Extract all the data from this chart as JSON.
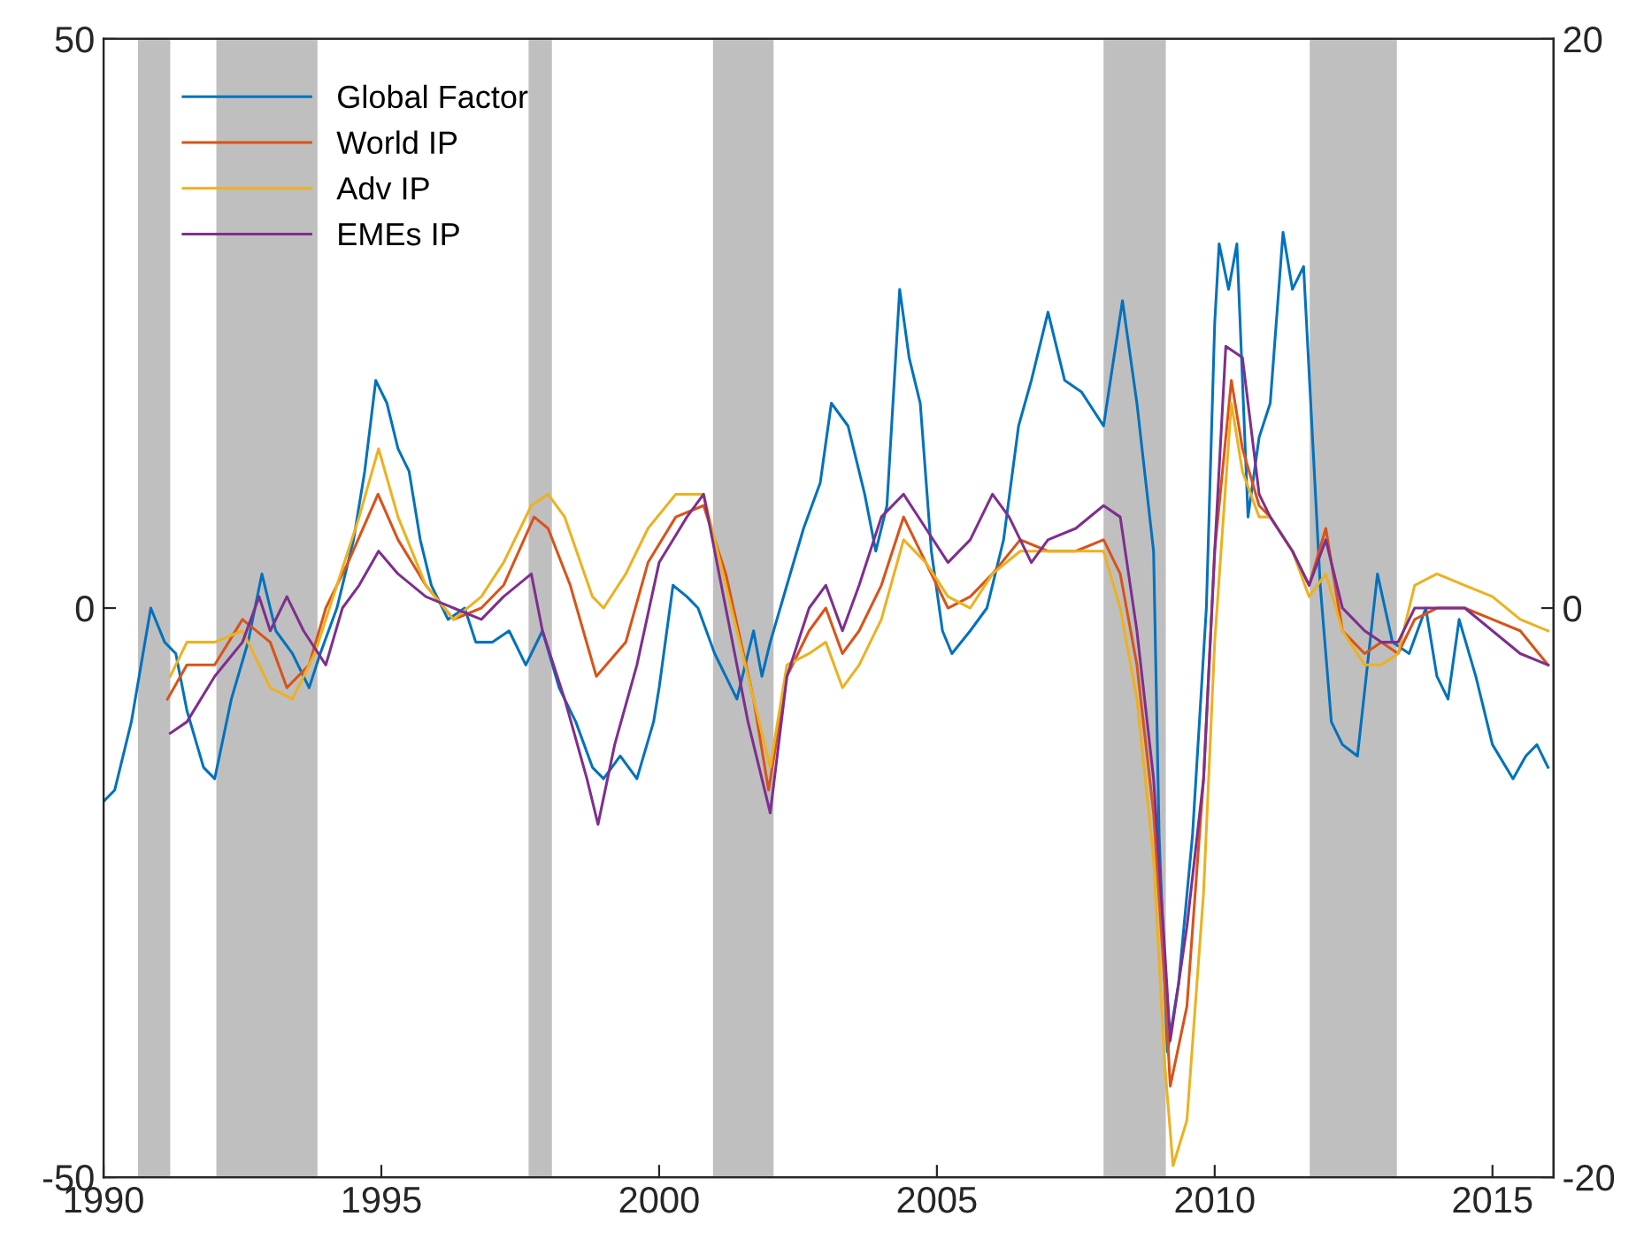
{
  "chart_data": {
    "type": "line",
    "xlim": [
      1990,
      2016.1
    ],
    "xticks": [
      1990,
      1995,
      2000,
      2005,
      2010,
      2015
    ],
    "ylim": [
      -50,
      50
    ],
    "yticks": [
      -50,
      0,
      50
    ],
    "y2lim": [
      -20,
      20
    ],
    "y2ticks": [
      -20,
      0,
      20
    ],
    "grid": false,
    "legend": "top left",
    "bands": [
      {
        "axis": "x",
        "from": 1990.62,
        "to": 1991.2,
        "color": "#bfbfbf"
      },
      {
        "axis": "x",
        "from": 1992.03,
        "to": 1993.85,
        "color": "#bfbfbf"
      },
      {
        "axis": "x",
        "from": 1997.65,
        "to": 1998.07,
        "color": "#bfbfbf"
      },
      {
        "axis": "x",
        "from": 2000.97,
        "to": 2002.06,
        "color": "#bfbfbf"
      },
      {
        "axis": "x",
        "from": 2008.0,
        "to": 2009.12,
        "color": "#bfbfbf"
      },
      {
        "axis": "x",
        "from": 2011.71,
        "to": 2013.28,
        "color": "#bfbfbf"
      }
    ],
    "series": [
      {
        "name": "Global Factor",
        "color": "#0072bd",
        "x": [
          1990.0,
          1990.2,
          1990.5,
          1990.85,
          1991.1,
          1991.3,
          1991.5,
          1991.8,
          1992.0,
          1992.3,
          1992.6,
          1992.85,
          1993.1,
          1993.4,
          1993.7,
          1993.9,
          1994.2,
          1994.5,
          1994.7,
          1994.9,
          1995.1,
          1995.3,
          1995.5,
          1995.7,
          1995.9,
          1996.2,
          1996.5,
          1996.7,
          1997.0,
          1997.3,
          1997.6,
          1997.9,
          1998.2,
          1998.5,
          1998.8,
          1999.0,
          1999.3,
          1999.6,
          1999.9,
          2000.0,
          2000.25,
          2000.5,
          2000.7,
          2001.0,
          2001.2,
          2001.4,
          2001.7,
          2001.85,
          2002.0,
          2002.3,
          2002.6,
          2002.9,
          2003.1,
          2003.4,
          2003.7,
          2003.9,
          2004.1,
          2004.33,
          2004.5,
          2004.7,
          2004.9,
          2005.1,
          2005.27,
          2005.6,
          2005.9,
          2006.2,
          2006.47,
          2006.7,
          2007.0,
          2007.3,
          2007.6,
          2008.0,
          2008.34,
          2008.6,
          2008.9,
          2009.0,
          2009.15,
          2009.35,
          2009.6,
          2009.85,
          2010.0,
          2010.08,
          2010.25,
          2010.4,
          2010.6,
          2010.8,
          2011.0,
          2011.23,
          2011.4,
          2011.6,
          2011.9,
          2012.1,
          2012.3,
          2012.57,
          2012.75,
          2012.93,
          2013.2,
          2013.5,
          2013.8,
          2014.0,
          2014.2,
          2014.4,
          2014.7,
          2015.0,
          2015.37,
          2015.6,
          2015.8,
          2016.0
        ],
        "values": [
          -17,
          -16,
          -10,
          0,
          -3,
          -4,
          -9,
          -14,
          -15,
          -8,
          -3,
          3,
          -2,
          -4,
          -7,
          -4,
          0,
          6,
          12,
          20,
          18,
          14,
          12,
          6,
          2,
          -1,
          0,
          -3,
          -3,
          -2,
          -5,
          -2,
          -7,
          -10,
          -14,
          -15,
          -13,
          -15,
          -10,
          -7,
          2,
          1,
          0,
          -4,
          -6,
          -8,
          -2,
          -6,
          -3,
          2,
          7,
          11,
          18,
          16,
          10,
          5,
          9,
          28,
          22,
          18,
          5,
          -2,
          -4,
          -2,
          0,
          6,
          16,
          20,
          26,
          20,
          19,
          16,
          27,
          18,
          5,
          -20,
          -39,
          -33,
          -20,
          0,
          25,
          32,
          28,
          32,
          8,
          15,
          18,
          33,
          28,
          30,
          2,
          -10,
          -12,
          -13,
          -5,
          3,
          -3,
          -4,
          0,
          -6,
          -8,
          -1,
          -6,
          -12,
          -15,
          -13,
          -12,
          -14
        ]
      },
      {
        "name": "World IP",
        "color": "#d95319",
        "x": [
          1991.15,
          1991.5,
          1992.0,
          1992.5,
          1993.0,
          1993.3,
          1993.7,
          1994.0,
          1994.4,
          1994.94,
          1995.3,
          1995.8,
          1996.3,
          1996.8,
          1997.2,
          1997.75,
          1998.0,
          1998.4,
          1998.87,
          1999.4,
          1999.8,
          2000.3,
          2000.8,
          2001.2,
          2001.7,
          2001.97,
          2002.3,
          2002.7,
          2003.0,
          2003.3,
          2003.6,
          2004.0,
          2004.4,
          2004.8,
          2005.2,
          2005.6,
          2006.0,
          2006.5,
          2007.0,
          2007.5,
          2008.0,
          2008.3,
          2008.6,
          2008.9,
          2009.1,
          2009.2,
          2009.5,
          2009.8,
          2010.0,
          2010.3,
          2010.5,
          2010.8,
          2011.0,
          2011.4,
          2011.7,
          2012.0,
          2012.3,
          2012.7,
          2013.0,
          2013.3,
          2013.6,
          2014.0,
          2014.5,
          2015.0,
          2015.5,
          2016.0
        ],
        "values": [
          -8,
          -5,
          -5,
          -1,
          -3,
          -7,
          -5,
          0,
          4,
          10,
          6,
          2,
          -1,
          0,
          2,
          8,
          7,
          2,
          -6,
          -3,
          4,
          8,
          9,
          3,
          -8,
          -16,
          -6,
          -2,
          0,
          -4,
          -2,
          2,
          8,
          4,
          0,
          1,
          3,
          6,
          5,
          5,
          6,
          3,
          -5,
          -18,
          -33,
          -42,
          -35,
          -15,
          5,
          20,
          14,
          9,
          8,
          5,
          2,
          7,
          -2,
          -4,
          -3,
          -4,
          -1,
          0,
          0,
          -1,
          -2,
          -5
        ]
      },
      {
        "name": "Adv IP",
        "color": "#edb120",
        "x": [
          1991.2,
          1991.5,
          1992.0,
          1992.5,
          1993.0,
          1993.4,
          1993.8,
          1994.2,
          1994.6,
          1994.95,
          1995.3,
          1995.8,
          1996.3,
          1996.8,
          1997.2,
          1997.7,
          1998.0,
          1998.3,
          1998.8,
          1999.0,
          1999.4,
          1999.8,
          2000.3,
          2000.8,
          2001.2,
          2001.7,
          2002.0,
          2002.3,
          2002.7,
          2003.0,
          2003.3,
          2003.6,
          2004.0,
          2004.4,
          2004.8,
          2005.2,
          2005.6,
          2006.0,
          2006.5,
          2007.0,
          2007.5,
          2008.0,
          2008.3,
          2008.6,
          2008.9,
          2009.1,
          2009.25,
          2009.5,
          2009.8,
          2010.0,
          2010.3,
          2010.5,
          2010.8,
          2011.0,
          2011.4,
          2011.7,
          2012.0,
          2012.3,
          2012.7,
          2013.0,
          2013.3,
          2013.6,
          2014.0,
          2014.5,
          2015.0,
          2015.5,
          2016.0
        ],
        "values": [
          -6,
          -3,
          -3,
          -2,
          -7,
          -8,
          -4,
          2,
          8,
          14,
          8,
          2,
          -1,
          1,
          4,
          9,
          10,
          8,
          1,
          0,
          3,
          7,
          10,
          10,
          2,
          -8,
          -14,
          -5,
          -4,
          -3,
          -7,
          -5,
          -1,
          6,
          4,
          1,
          0,
          3,
          5,
          5,
          5,
          5,
          0,
          -8,
          -22,
          -40,
          -49,
          -45,
          -25,
          -3,
          18,
          12,
          8,
          8,
          5,
          1,
          3,
          -2,
          -5,
          -5,
          -4,
          2,
          3,
          2,
          1,
          -1,
          -2
        ]
      },
      {
        "name": "EMEs IP",
        "color": "#7e2f8e",
        "x": [
          1991.2,
          1991.5,
          1992.0,
          1992.5,
          1992.8,
          1993.0,
          1993.3,
          1993.6,
          1994.0,
          1994.3,
          1994.6,
          1994.95,
          1995.3,
          1995.8,
          1996.3,
          1996.8,
          1997.2,
          1997.7,
          1997.9,
          1998.3,
          1998.7,
          1998.9,
          1999.2,
          1999.6,
          2000.0,
          2000.5,
          2000.8,
          2001.2,
          2001.6,
          2002.0,
          2002.3,
          2002.7,
          2003.0,
          2003.3,
          2003.6,
          2004.0,
          2004.4,
          2004.8,
          2005.2,
          2005.6,
          2006.0,
          2006.3,
          2006.7,
          2007.0,
          2007.5,
          2008.0,
          2008.3,
          2008.6,
          2008.9,
          2009.1,
          2009.2,
          2009.5,
          2009.8,
          2010.0,
          2010.2,
          2010.5,
          2010.8,
          2011.0,
          2011.4,
          2011.7,
          2012.0,
          2012.3,
          2012.7,
          2013.0,
          2013.3,
          2013.6,
          2014.0,
          2014.5,
          2015.0,
          2015.5,
          2016.0
        ],
        "values": [
          -11,
          -10,
          -6,
          -3,
          1,
          -2,
          1,
          -2,
          -5,
          0,
          2,
          5,
          3,
          1,
          0,
          -1,
          1,
          3,
          -2,
          -8,
          -15,
          -19,
          -12,
          -5,
          4,
          8,
          10,
          0,
          -10,
          -18,
          -6,
          0,
          2,
          -2,
          2,
          8,
          10,
          7,
          4,
          6,
          10,
          8,
          4,
          6,
          7,
          9,
          8,
          -2,
          -15,
          -30,
          -38,
          -28,
          -15,
          5,
          23,
          22,
          10,
          8,
          5,
          2,
          6,
          0,
          -2,
          -3,
          -3,
          0,
          0,
          0,
          -2,
          -4,
          -5
        ]
      }
    ]
  }
}
